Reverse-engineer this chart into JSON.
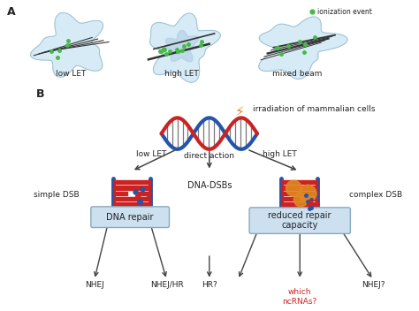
{
  "background_color": "#ffffff",
  "panel_A_label": "A",
  "panel_B_label": "B",
  "low_let_label": "low LET",
  "high_let_label": "high LET",
  "mixed_beam_label": "mixed beam",
  "ionization_event_label": "ionization event",
  "irradiation_label": "irradiation of mammalian cells",
  "direct_action_label": "direct action",
  "dna_dsbs_label": "DNA-DSBs",
  "simple_dsb_label": "simple DSB",
  "complex_dsb_label": "complex DSB",
  "dna_repair_label": "DNA repair",
  "reduced_repair_label": "reduced repair\ncapacity",
  "nhej_label": "NHEJ",
  "nhejhr_label": "NHEJ/HR",
  "hr_label": "HR?",
  "which_ncrnas_label": "which\nncRNAs?",
  "nhej2_label": "NHEJ?",
  "cell_color_outer": "#d0e8f5",
  "cell_color_inner": "#b8d8ee",
  "cell_nucleus_color": "#a8c8e0",
  "dna_red": "#cc2222",
  "dna_blue": "#2255aa",
  "green_dot": "#44bb44",
  "arrow_color": "#444444",
  "box_fill": "#cce0f0",
  "box_edge": "#88aabb",
  "red_text": "#cc2222",
  "black_text": "#222222",
  "orange_color": "#e08820",
  "track_color": "#333333",
  "rung_color": "#777777"
}
